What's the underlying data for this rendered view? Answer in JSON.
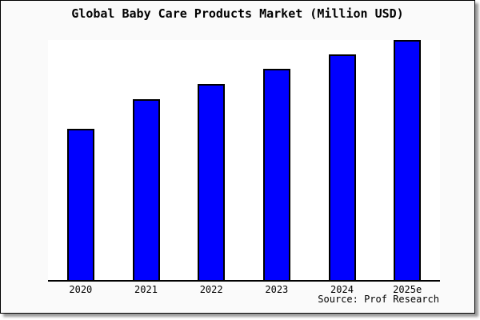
{
  "title": "Global Baby Care Products Market (Million USD)",
  "source_caption": "Source: Prof Research",
  "colors": {
    "bar_fill": "#0000ff",
    "bar_border": "#000000",
    "plot_background": "#ffffff",
    "card_background": "#fafafa",
    "axis": "#000000",
    "text": "#000000"
  },
  "chart_data": {
    "type": "bar",
    "title": "Global Baby Care Products Market (Million USD)",
    "categories": [
      "2020",
      "2021",
      "2022",
      "2023",
      "2024",
      "2025e"
    ],
    "values": [
      189,
      226,
      245,
      264,
      282,
      300
    ],
    "xlabel": "",
    "ylabel": "",
    "ylim": [
      0,
      300
    ],
    "grid": false,
    "legend": false,
    "y_axis_labels_visible": false,
    "value_labels_visible": false,
    "annotation": "Source: Prof Research"
  }
}
